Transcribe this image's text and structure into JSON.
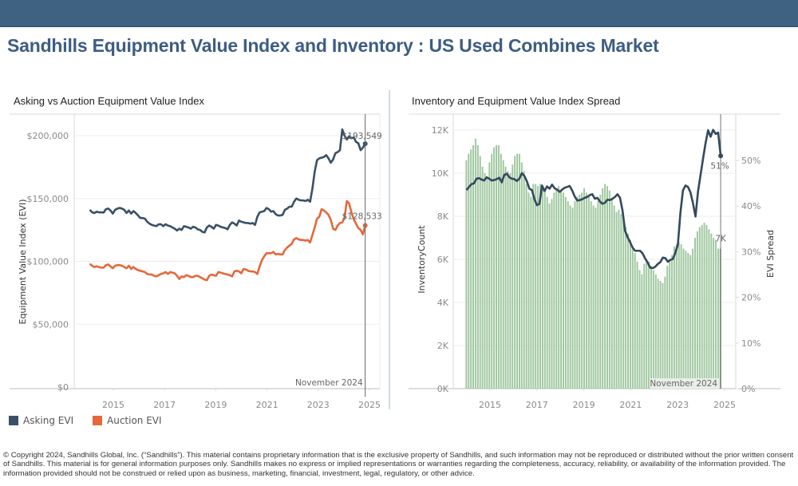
{
  "header": {
    "title": "Sandhills Equipment Value Index and Inventory : US Used Combines Market"
  },
  "colors": {
    "topbar": "#3f6283",
    "title": "#3d5d82",
    "asking": "#3a5068",
    "auction": "#e4683a",
    "bars": "#9fc79f",
    "bar_last": "#6e9e6e",
    "spread_line": "#34495e"
  },
  "chart_data": [
    {
      "type": "line",
      "title": "Asking vs Auction Equipment Value Index",
      "xlabel": "",
      "ylabel": "Equipment Value Index (EVI)",
      "x_start": "2014-02",
      "x_end": "2024-11",
      "x_ticks": [
        "2015",
        "2017",
        "2019",
        "2021",
        "2023",
        "2025"
      ],
      "y_ticks": [
        "$0",
        "$50,000",
        "$100,000",
        "$150,000",
        "$200,000"
      ],
      "ylim": [
        0,
        215000
      ],
      "grid": true,
      "reference_line": {
        "label": "November 2024",
        "x": "2024-11"
      },
      "legend": {
        "position": "bottom-left",
        "entries": [
          "Asking EVI",
          "Auction EVI"
        ]
      },
      "series": [
        {
          "name": "Asking EVI",
          "end_label": "$193,549",
          "values": [
            141000,
            139000,
            138500,
            139500,
            139000,
            139000,
            138800,
            141500,
            142000,
            140500,
            138000,
            141000,
            142000,
            142500,
            142000,
            141000,
            138500,
            140500,
            138000,
            140000,
            138500,
            136500,
            134500,
            134500,
            134000,
            131500,
            130000,
            129000,
            128500,
            128000,
            129500,
            129500,
            128000,
            129500,
            128500,
            128000,
            127000,
            126000,
            124500,
            126000,
            125000,
            128000,
            127500,
            127000,
            126000,
            127500,
            127000,
            125500,
            125000,
            123500,
            123000,
            127000,
            128500,
            127500,
            126000,
            129000,
            128500,
            127500,
            127000,
            126500,
            125500,
            129000,
            131000,
            130000,
            128500,
            132500,
            131500,
            131000,
            130500,
            130500,
            130000,
            130500,
            129000,
            135500,
            139000,
            139500,
            140000,
            142500,
            141500,
            139500,
            140000,
            137500,
            136500,
            136500,
            137000,
            141000,
            142000,
            143500,
            143500,
            147500,
            150000,
            149000,
            148500,
            148500,
            148000,
            149000,
            147500,
            158000,
            171500,
            180500,
            182000,
            182500,
            183000,
            184500,
            182000,
            178500,
            181000,
            186000,
            187000,
            188500,
            205000,
            200000,
            197000,
            199500,
            198000,
            198500,
            195000,
            194000,
            188500,
            190500,
            193549
          ]
        },
        {
          "name": "Auction EVI",
          "end_label": "$128,533",
          "values": [
            98000,
            96500,
            95500,
            96000,
            95500,
            95000,
            95000,
            97000,
            97500,
            96000,
            94500,
            96500,
            97000,
            97000,
            96500,
            95500,
            94500,
            96500,
            94000,
            95500,
            94000,
            93000,
            92500,
            92000,
            91500,
            90000,
            89500,
            89500,
            88500,
            88000,
            89000,
            90000,
            90500,
            91500,
            90000,
            91500,
            91000,
            90500,
            88500,
            86000,
            88000,
            87500,
            89000,
            88500,
            87500,
            87500,
            88500,
            88500,
            87500,
            86500,
            85500,
            85000,
            88500,
            89500,
            89000,
            88500,
            91500,
            91000,
            90500,
            90000,
            89500,
            89000,
            88000,
            92000,
            92500,
            92000,
            90500,
            94000,
            93500,
            92500,
            92000,
            92000,
            91500,
            90000,
            96000,
            101000,
            104000,
            106500,
            106500,
            106500,
            107500,
            105500,
            106000,
            105500,
            105500,
            109000,
            111000,
            112500,
            114000,
            117500,
            118500,
            117500,
            117000,
            117000,
            116500,
            117000,
            115000,
            121000,
            127000,
            134000,
            135500,
            141500,
            140500,
            139000,
            137000,
            133000,
            126000,
            125000,
            128500,
            130500,
            131000,
            135000,
            148000,
            146000,
            139000,
            133500,
            130000,
            126500,
            125000,
            121500,
            128533
          ]
        }
      ]
    },
    {
      "type": "bar",
      "title": "Inventory and Equipment Value Index Spread",
      "xlabel": "",
      "ylabel": "InventoryCount",
      "y2label": "EVI Spread",
      "x_start": "2014-01",
      "x_end": "2024-11",
      "x_ticks": [
        "2015",
        "2017",
        "2019",
        "2021",
        "2023",
        "2025"
      ],
      "y_ticks": [
        "0K",
        "2K",
        "4K",
        "6K",
        "8K",
        "10K",
        "12K"
      ],
      "y2_ticks": [
        "0%",
        "10%",
        "20%",
        "30%",
        "40%",
        "50%"
      ],
      "ylim": [
        0,
        12700
      ],
      "y2lim": [
        0,
        58.6
      ],
      "grid": true,
      "reference_line": {
        "label": "November 2024",
        "x": "2024-11"
      },
      "series": [
        {
          "name": "InventoryCount",
          "type": "bar",
          "end_label": "7K",
          "values": [
            10600,
            10900,
            11100,
            11300,
            11600,
            11300,
            10800,
            10300,
            10000,
            9800,
            10500,
            10900,
            11200,
            11300,
            11300,
            10900,
            10600,
            10300,
            10100,
            10000,
            10400,
            10800,
            10900,
            10900,
            10500,
            10100,
            9500,
            9100,
            8900,
            9500,
            9500,
            9400,
            9500,
            9400,
            9200,
            8900,
            8600,
            8800,
            9100,
            9300,
            9400,
            9200,
            9100,
            8900,
            8700,
            8500,
            8400,
            8700,
            8900,
            9000,
            9100,
            9300,
            9100,
            8900,
            8700,
            8500,
            8400,
            8700,
            9000,
            9300,
            9500,
            9400,
            9200,
            8800,
            8500,
            8200,
            8300,
            8100,
            7800,
            7500,
            7200,
            6900,
            6600,
            6300,
            5900,
            5500,
            5300,
            5800,
            6000,
            5900,
            5700,
            5500,
            5300,
            5100,
            5000,
            4900,
            5200,
            5700,
            6000,
            6200,
            6600,
            6700,
            6800,
            6700,
            6500,
            6400,
            6300,
            6200,
            6500,
            7000,
            7300,
            7500,
            7600,
            7700,
            7600,
            7400,
            7200,
            7000,
            6900,
            6500,
            6500
          ]
        },
        {
          "name": "EVI Spread",
          "type": "line",
          "end_label": "51%",
          "values": [
            43.5,
            44.2,
            44.8,
            45.0,
            46.0,
            46.1,
            45.8,
            45.6,
            46.3,
            46.0,
            45.6,
            45.7,
            45.9,
            46.2,
            45.2,
            46.8,
            47.1,
            46.3,
            46.0,
            45.9,
            45.5,
            46.0,
            47.2,
            46.6,
            45.4,
            43.8,
            43.5,
            41.5,
            40.2,
            40.5,
            44.5,
            43.3,
            44.3,
            43.8,
            44.7,
            43.9,
            43.6,
            43.1,
            43.6,
            44.0,
            44.2,
            44.4,
            43.4,
            42.1,
            41.2,
            41.3,
            41.5,
            41.8,
            42.0,
            42.4,
            42.6,
            41.6,
            41.8,
            41.0,
            40.5,
            40.7,
            41.4,
            41.3,
            41.6,
            42.0,
            42.6,
            41.8,
            39.0,
            34.6,
            33.2,
            32.1,
            30.9,
            30.2,
            30.2,
            30.2,
            29.6,
            28.5,
            27.6,
            26.5,
            26.4,
            26.7,
            27.3,
            27.7,
            28.7,
            28.6,
            27.8,
            28.2,
            28.4,
            29.8,
            31.6,
            38.5,
            43.4,
            44.5,
            44.2,
            43.0,
            40.6,
            37.7,
            43.2,
            46.8,
            50.4,
            53.8,
            56.6,
            55.2,
            56.7,
            55.8,
            56.1,
            51.0
          ]
        }
      ]
    }
  ],
  "left_chart": {
    "title": "Asking vs Auction Equipment Value Index",
    "ylabel": "Equipment Value Index (EVI)",
    "ref_label": "November 2024",
    "asking_label": "$193,549",
    "auction_label": "$128,533",
    "legend": {
      "asking": "Asking EVI",
      "auction": "Auction EVI"
    }
  },
  "right_chart": {
    "title": "Inventory and Equipment Value Index Spread",
    "ylabel": "InventoryCount",
    "y2label": "EVI Spread",
    "ref_label": "November 2024",
    "spread_label": "51%",
    "inventory_label": "7K"
  },
  "footer": {
    "text": "© Copyright 2024, Sandhills Global, Inc. (“Sandhills”). This material contains proprietary information that is the exclusive property of Sandhills, and such information may not be reproduced or distributed without the prior written consent of Sandhills. This material is for general information purposes only. Sandhills makes no express or implied representations or warranties regarding the completeness, accuracy, reliability, or availability of the information provided. The information provided should not be construed or relied upon as business, marketing, financial, investment, legal, regulatory, or other advice."
  }
}
